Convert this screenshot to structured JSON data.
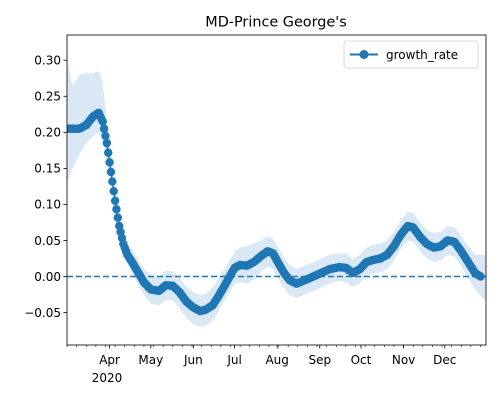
{
  "chart_data": {
    "type": "line",
    "title": "MD-Prince George's",
    "xlabel": "",
    "ylabel": "",
    "x_range": [
      "2020-03-01",
      "2020-12-31"
    ],
    "ylim": [
      -0.095,
      0.335
    ],
    "y_ticks": [
      -0.05,
      0.0,
      0.05,
      0.1,
      0.15,
      0.2,
      0.25,
      0.3
    ],
    "y_tick_labels": [
      "−0.05",
      "0.00",
      "0.05",
      "0.10",
      "0.15",
      "0.20",
      "0.25",
      "0.30"
    ],
    "x_ticks": [
      {
        "date": "2020-04-01",
        "label": "Apr"
      },
      {
        "date": "2020-05-01",
        "label": "May"
      },
      {
        "date": "2020-06-01",
        "label": "Jun"
      },
      {
        "date": "2020-07-01",
        "label": "Jul"
      },
      {
        "date": "2020-08-01",
        "label": "Aug"
      },
      {
        "date": "2020-09-01",
        "label": "Sep"
      },
      {
        "date": "2020-10-01",
        "label": "Oct"
      },
      {
        "date": "2020-11-01",
        "label": "Nov"
      },
      {
        "date": "2020-12-01",
        "label": "Dec"
      }
    ],
    "year_label": "2020",
    "grid": false,
    "legend": {
      "position": "top-right",
      "entries": [
        "growth_rate"
      ]
    },
    "reference_line": {
      "y": 0.0,
      "style": "dashed"
    },
    "colors": {
      "line": "#1f77b4",
      "band": "#dae8f5"
    },
    "series": [
      {
        "name": "growth_rate",
        "marker": "circle",
        "points": [
          [
            "2020-03-01",
            0.205
          ],
          [
            "2020-03-10",
            0.205
          ],
          [
            "2020-03-15",
            0.21
          ],
          [
            "2020-03-20",
            0.222
          ],
          [
            "2020-03-24",
            0.227
          ],
          [
            "2020-03-27",
            0.215
          ],
          [
            "2020-03-30",
            0.185
          ],
          [
            "2020-04-02",
            0.145
          ],
          [
            "2020-04-05",
            0.105
          ],
          [
            "2020-04-08",
            0.07
          ],
          [
            "2020-04-11",
            0.045
          ],
          [
            "2020-04-14",
            0.03
          ],
          [
            "2020-04-18",
            0.018
          ],
          [
            "2020-04-22",
            0.005
          ],
          [
            "2020-04-26",
            -0.008
          ],
          [
            "2020-05-01",
            -0.018
          ],
          [
            "2020-05-07",
            -0.02
          ],
          [
            "2020-05-12",
            -0.012
          ],
          [
            "2020-05-17",
            -0.013
          ],
          [
            "2020-05-22",
            -0.022
          ],
          [
            "2020-05-27",
            -0.035
          ],
          [
            "2020-06-01",
            -0.043
          ],
          [
            "2020-06-06",
            -0.048
          ],
          [
            "2020-06-10",
            -0.046
          ],
          [
            "2020-06-15",
            -0.04
          ],
          [
            "2020-06-20",
            -0.025
          ],
          [
            "2020-06-26",
            -0.005
          ],
          [
            "2020-07-01",
            0.012
          ],
          [
            "2020-07-05",
            0.016
          ],
          [
            "2020-07-10",
            0.015
          ],
          [
            "2020-07-15",
            0.02
          ],
          [
            "2020-07-20",
            0.028
          ],
          [
            "2020-07-25",
            0.035
          ],
          [
            "2020-07-29",
            0.032
          ],
          [
            "2020-08-02",
            0.018
          ],
          [
            "2020-08-06",
            0.005
          ],
          [
            "2020-08-10",
            -0.005
          ],
          [
            "2020-08-15",
            -0.01
          ],
          [
            "2020-08-20",
            -0.006
          ],
          [
            "2020-08-25",
            -0.002
          ],
          [
            "2020-09-01",
            0.004
          ],
          [
            "2020-09-08",
            0.01
          ],
          [
            "2020-09-15",
            0.013
          ],
          [
            "2020-09-20",
            0.012
          ],
          [
            "2020-09-25",
            0.005
          ],
          [
            "2020-09-30",
            0.01
          ],
          [
            "2020-10-05",
            0.02
          ],
          [
            "2020-10-10",
            0.023
          ],
          [
            "2020-10-15",
            0.025
          ],
          [
            "2020-10-20",
            0.03
          ],
          [
            "2020-10-25",
            0.042
          ],
          [
            "2020-10-30",
            0.058
          ],
          [
            "2020-11-04",
            0.07
          ],
          [
            "2020-11-08",
            0.068
          ],
          [
            "2020-11-13",
            0.055
          ],
          [
            "2020-11-18",
            0.045
          ],
          [
            "2020-11-23",
            0.04
          ],
          [
            "2020-11-28",
            0.042
          ],
          [
            "2020-12-03",
            0.05
          ],
          [
            "2020-12-08",
            0.048
          ],
          [
            "2020-12-13",
            0.035
          ],
          [
            "2020-12-18",
            0.02
          ],
          [
            "2020-12-23",
            0.005
          ],
          [
            "2020-12-27",
            0.0
          ]
        ],
        "band": [
          [
            "2020-03-01",
            0.13,
            0.305
          ],
          [
            "2020-03-05",
            0.15,
            0.265
          ],
          [
            "2020-03-10",
            0.17,
            0.28
          ],
          [
            "2020-03-15",
            0.185,
            0.282
          ],
          [
            "2020-03-20",
            0.195,
            0.282
          ],
          [
            "2020-03-24",
            0.2,
            0.285
          ],
          [
            "2020-03-27",
            0.19,
            0.27
          ],
          [
            "2020-03-30",
            0.165,
            0.215
          ],
          [
            "2020-04-02",
            0.13,
            0.165
          ],
          [
            "2020-04-05",
            0.09,
            0.125
          ],
          [
            "2020-04-08",
            0.056,
            0.09
          ],
          [
            "2020-04-11",
            0.032,
            0.06
          ],
          [
            "2020-04-14",
            0.016,
            0.046
          ],
          [
            "2020-04-18",
            0.002,
            0.034
          ],
          [
            "2020-04-22",
            -0.012,
            0.022
          ],
          [
            "2020-04-26",
            -0.026,
            0.01
          ],
          [
            "2020-05-01",
            -0.038,
            0.002
          ],
          [
            "2020-05-07",
            -0.04,
            0.0
          ],
          [
            "2020-05-12",
            -0.032,
            0.008
          ],
          [
            "2020-05-17",
            -0.033,
            0.007
          ],
          [
            "2020-05-22",
            -0.044,
            -0.002
          ],
          [
            "2020-05-27",
            -0.058,
            -0.014
          ],
          [
            "2020-06-01",
            -0.066,
            -0.022
          ],
          [
            "2020-06-06",
            -0.07,
            -0.026
          ],
          [
            "2020-06-10",
            -0.068,
            -0.024
          ],
          [
            "2020-06-15",
            -0.062,
            -0.016
          ],
          [
            "2020-06-20",
            -0.046,
            0.0
          ],
          [
            "2020-06-26",
            -0.026,
            0.018
          ],
          [
            "2020-07-01",
            -0.01,
            0.034
          ],
          [
            "2020-07-05",
            -0.008,
            0.04
          ],
          [
            "2020-07-10",
            -0.01,
            0.042
          ],
          [
            "2020-07-15",
            -0.004,
            0.046
          ],
          [
            "2020-07-20",
            0.006,
            0.05
          ],
          [
            "2020-07-25",
            0.014,
            0.056
          ],
          [
            "2020-07-29",
            0.01,
            0.052
          ],
          [
            "2020-08-02",
            -0.004,
            0.04
          ],
          [
            "2020-08-06",
            -0.016,
            0.026
          ],
          [
            "2020-08-10",
            -0.026,
            0.016
          ],
          [
            "2020-08-15",
            -0.03,
            0.01
          ],
          [
            "2020-08-20",
            -0.026,
            0.014
          ],
          [
            "2020-08-25",
            -0.022,
            0.018
          ],
          [
            "2020-09-01",
            -0.016,
            0.024
          ],
          [
            "2020-09-08",
            -0.01,
            0.03
          ],
          [
            "2020-09-15",
            -0.006,
            0.032
          ],
          [
            "2020-09-20",
            -0.008,
            0.032
          ],
          [
            "2020-09-25",
            -0.014,
            0.024
          ],
          [
            "2020-09-30",
            -0.01,
            0.03
          ],
          [
            "2020-10-05",
            0.002,
            0.04
          ],
          [
            "2020-10-10",
            0.004,
            0.044
          ],
          [
            "2020-10-15",
            0.006,
            0.046
          ],
          [
            "2020-10-20",
            0.01,
            0.05
          ],
          [
            "2020-10-25",
            0.022,
            0.062
          ],
          [
            "2020-10-30",
            0.038,
            0.078
          ],
          [
            "2020-11-04",
            0.05,
            0.09
          ],
          [
            "2020-11-08",
            0.048,
            0.088
          ],
          [
            "2020-11-13",
            0.035,
            0.075
          ],
          [
            "2020-11-18",
            0.025,
            0.065
          ],
          [
            "2020-11-23",
            0.02,
            0.06
          ],
          [
            "2020-11-28",
            0.022,
            0.062
          ],
          [
            "2020-12-03",
            0.03,
            0.07
          ],
          [
            "2020-12-08",
            0.028,
            0.068
          ],
          [
            "2020-12-13",
            0.014,
            0.056
          ],
          [
            "2020-12-18",
            -0.002,
            0.042
          ],
          [
            "2020-12-23",
            -0.018,
            0.03
          ],
          [
            "2020-12-31",
            -0.035,
            0.03
          ]
        ]
      }
    ]
  }
}
